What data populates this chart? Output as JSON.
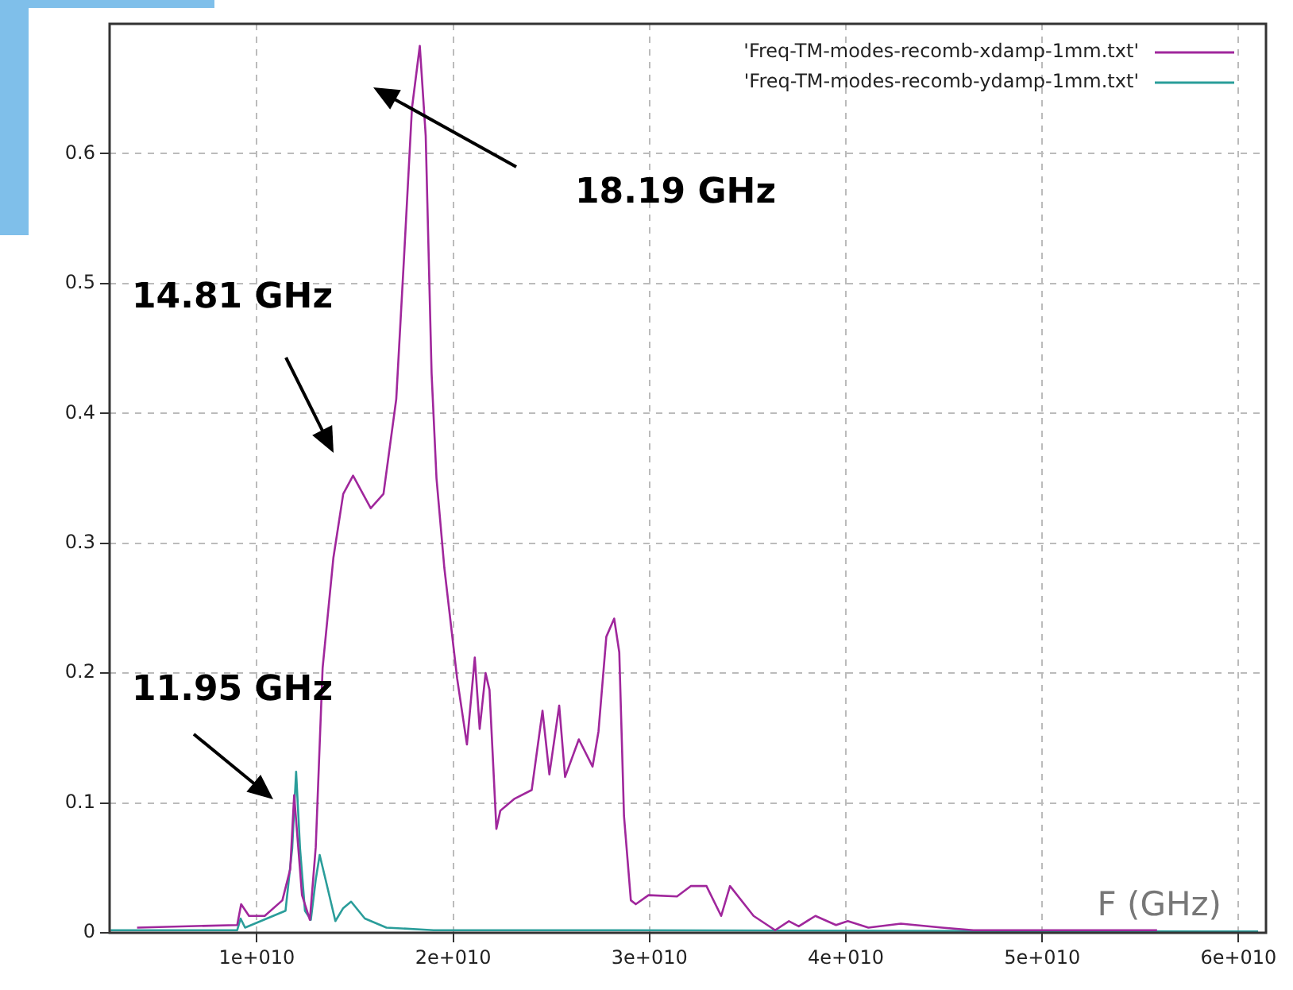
{
  "chart_data": {
    "type": "line",
    "xlabel": "F (GHz)",
    "xlim": [
      2500000000,
      61400000000
    ],
    "xticks": [
      {
        "value": 10000000000,
        "label": "1e+010"
      },
      {
        "value": 20000000000,
        "label": "2e+010"
      },
      {
        "value": 30000000000,
        "label": "3e+010"
      },
      {
        "value": 40000000000,
        "label": "4e+010"
      },
      {
        "value": 50000000000,
        "label": "5e+010"
      },
      {
        "value": 60000000000,
        "label": "6e+010"
      }
    ],
    "ylim": [
      0,
      0.7
    ],
    "yticks": [
      0,
      0.1,
      0.2,
      0.3,
      0.4,
      0.5,
      0.6
    ],
    "grid": true,
    "legend": "top right",
    "marker": "none",
    "line_style": "solid",
    "series": [
      {
        "name": "'Freq-TM-modes-recomb-xdamp-1mm.txt'",
        "color": "#a0279c",
        "x": [
          3900000000.0,
          9000000000.0,
          9200000000.0,
          9600000000.0,
          10400000000.0,
          11300000000.0,
          11700000000.0,
          11900000000.0,
          12300000000.0,
          12700000000.0,
          13000000000.0,
          13350000000.0,
          13900000000.0,
          14400000000.0,
          14900000000.0,
          15800000000.0,
          16450000000.0,
          17100000000.0,
          17500000000.0,
          17900000000.0,
          18300000000.0,
          18600000000.0,
          18900000000.0,
          19150000000.0,
          19550000000.0,
          20200000000.0,
          20700000000.0,
          21100000000.0,
          21350000000.0,
          21650000000.0,
          21850000000.0,
          22200000000.0,
          22400000000.0,
          23100000000.0,
          24000000000.0,
          24550000000.0,
          24900000000.0,
          25400000000.0,
          25700000000.0,
          26400000000.0,
          27100000000.0,
          27400000000.0,
          27800000000.0,
          28200000000.0,
          28460000000.0,
          28700000000.0,
          29050000000.0,
          29300000000.0,
          29950000000.0,
          31400000000.0,
          32100000000.0,
          32900000000.0,
          33650000000.0,
          34100000000.0,
          35300000000.0,
          36400000000.0,
          37100000000.0,
          37600000000.0,
          38450000000.0,
          39500000000.0,
          40100000000.0,
          41150000000.0,
          42800000000.0,
          44900000000.0,
          46500000000.0,
          55850000000.0
        ],
        "values": [
          0.004,
          0.006,
          0.022,
          0.013,
          0.013,
          0.025,
          0.049,
          0.106,
          0.029,
          0.01,
          0.066,
          0.204,
          0.289,
          0.338,
          0.352,
          0.327,
          0.338,
          0.411,
          0.521,
          0.635,
          0.683,
          0.614,
          0.431,
          0.35,
          0.281,
          0.196,
          0.145,
          0.212,
          0.157,
          0.2,
          0.187,
          0.08,
          0.094,
          0.103,
          0.11,
          0.171,
          0.122,
          0.175,
          0.12,
          0.149,
          0.128,
          0.155,
          0.228,
          0.242,
          0.216,
          0.09,
          0.025,
          0.022,
          0.029,
          0.028,
          0.036,
          0.036,
          0.013,
          0.036,
          0.013,
          0.002,
          0.009,
          0.005,
          0.013,
          0.006,
          0.009,
          0.004,
          0.007,
          0.004,
          0.002,
          0.002
        ]
      },
      {
        "name": "'Freq-TM-modes-recomb-ydamp-1mm.txt'",
        "color": "#2a9d9a",
        "x": [
          2550000000.0,
          9000000000.0,
          9170000000.0,
          9400000000.0,
          11460000000.0,
          11800000000.0,
          12000000000.0,
          12200000000.0,
          12450000000.0,
          12750000000.0,
          13000000000.0,
          13200000000.0,
          13500000000.0,
          14000000000.0,
          14400000000.0,
          14800000000.0,
          15500000000.0,
          16600000000.0,
          19000000000.0,
          28700000000.0,
          61000000000.0
        ],
        "values": [
          0.002,
          0.002,
          0.011,
          0.004,
          0.017,
          0.065,
          0.124,
          0.065,
          0.017,
          0.01,
          0.041,
          0.06,
          0.041,
          0.009,
          0.019,
          0.024,
          0.011,
          0.004,
          0.002,
          0.002,
          0.001
        ]
      }
    ],
    "annotations": [
      "18.19 GHz",
      "14.81 GHz",
      "11.95 GHz"
    ]
  }
}
